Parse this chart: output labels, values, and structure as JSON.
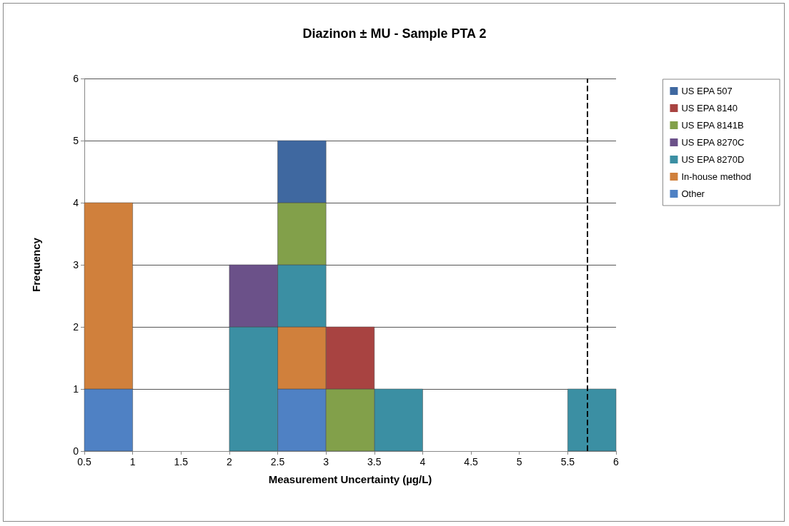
{
  "chart_data": {
    "type": "bar",
    "title": "Diazinon ± MU - Sample PTA 2",
    "xlabel": "Measurement Uncertainty (µg/L)",
    "ylabel": "Frequency",
    "x": [
      0.75,
      1.25,
      1.75,
      2.25,
      2.75,
      3.25,
      3.75,
      4.25,
      4.75,
      5.25,
      5.75
    ],
    "stacked": true,
    "series": [
      {
        "name": "Other",
        "color": "#4f81c4",
        "values": [
          1,
          0,
          0,
          0,
          1,
          0,
          0,
          0,
          0,
          0,
          0
        ]
      },
      {
        "name": "In-house method",
        "color": "#d0803c",
        "values": [
          3,
          0,
          0,
          0,
          1,
          0,
          0,
          0,
          0,
          0,
          0
        ]
      },
      {
        "name": "US EPA 8270D",
        "color": "#3b8fa3",
        "values": [
          0,
          0,
          0,
          2,
          1,
          0,
          1,
          0,
          0,
          0,
          1
        ]
      },
      {
        "name": "US EPA 8270C",
        "color": "#6b5189",
        "values": [
          0,
          0,
          0,
          1,
          0,
          0,
          0,
          0,
          0,
          0,
          0
        ]
      },
      {
        "name": "US EPA 8141B",
        "color": "#82a04a",
        "values": [
          0,
          0,
          0,
          0,
          1,
          1,
          0,
          0,
          0,
          0,
          0
        ]
      },
      {
        "name": "US EPA 8140",
        "color": "#a84341",
        "values": [
          0,
          0,
          0,
          0,
          0,
          1,
          0,
          0,
          0,
          0,
          0
        ]
      },
      {
        "name": "US EPA 507",
        "color": "#3f68a0",
        "values": [
          0,
          0,
          0,
          0,
          1,
          0,
          0,
          0,
          0,
          0,
          0
        ]
      }
    ],
    "xlim": [
      0.5,
      6
    ],
    "xticks": [
      0.5,
      1,
      1.5,
      2,
      2.5,
      3,
      3.5,
      4,
      4.5,
      5,
      5.5,
      6
    ],
    "ylim": [
      0,
      6
    ],
    "yticks": [
      0,
      1,
      2,
      3,
      4,
      5,
      6
    ],
    "grid": "y",
    "legend": "top right",
    "ref_lines": [
      {
        "axis": "x",
        "value": 5.7,
        "label": null,
        "color": "#000000",
        "line_style": "dashed"
      }
    ]
  }
}
